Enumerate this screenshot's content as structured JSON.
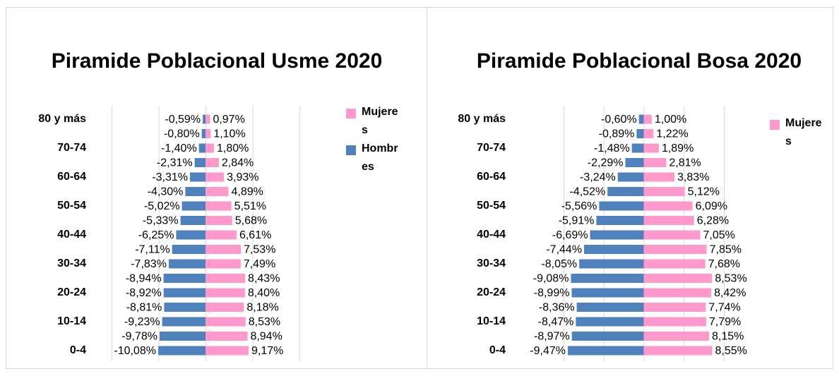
{
  "chart_data": [
    {
      "type": "bar",
      "orientation": "horizontal",
      "title": "Piramide Poblacional Usme 2020",
      "categories": [
        "80 y más",
        null,
        "70-74",
        null,
        "60-64",
        null,
        "50-54",
        null,
        "40-44",
        null,
        "30-34",
        null,
        "20-24",
        null,
        "10-14",
        null,
        "0-4"
      ],
      "series": [
        {
          "name": "Mujeres",
          "color": "#ff99cc",
          "values": [
            0.97,
            1.1,
            1.8,
            2.84,
            3.93,
            4.89,
            5.51,
            5.68,
            6.61,
            7.53,
            7.49,
            8.43,
            8.4,
            8.18,
            8.53,
            8.94,
            9.17
          ],
          "value_labels": [
            "0,97%",
            "1,10%",
            "1,80%",
            "2,84%",
            "3,93%",
            "4,89%",
            "5,51%",
            "5,68%",
            "6,61%",
            "7,53%",
            "7,49%",
            "8,43%",
            "8,40%",
            "8,18%",
            "8,53%",
            "8,94%",
            "9,17%"
          ]
        },
        {
          "name": "Hombres",
          "color": "#4f81bd",
          "values": [
            -0.59,
            -0.8,
            -1.4,
            -2.31,
            -3.31,
            -4.3,
            -5.02,
            -5.33,
            -6.25,
            -7.11,
            -7.83,
            -8.94,
            -8.92,
            -8.81,
            -9.23,
            -9.78,
            -10.08
          ],
          "value_labels": [
            "-0,59%",
            "-0,80%",
            "-1,40%",
            "-2,31%",
            "-3,31%",
            "-4,30%",
            "-5,02%",
            "-5,33%",
            "-6,25%",
            "-7,11%",
            "-7,83%",
            "-8,94%",
            "-8,92%",
            "-8,81%",
            "-9,23%",
            "-9,78%",
            "-10,08%"
          ]
        }
      ],
      "xlim": [
        -20,
        20
      ],
      "xticks": [
        -20,
        -10,
        0,
        10,
        20
      ],
      "tick_labels_visible": false,
      "grid": true,
      "legend": "right"
    },
    {
      "type": "bar",
      "orientation": "horizontal",
      "title": "Piramide Poblacional Bosa 2020",
      "categories": [
        "80 y más",
        null,
        "70-74",
        null,
        "60-64",
        null,
        "50-54",
        null,
        "40-44",
        null,
        "30-34",
        null,
        "20-24",
        null,
        "10-14",
        null,
        "0-4"
      ],
      "series": [
        {
          "name": "Mujeres",
          "color": "#ff99cc",
          "values": [
            1.0,
            1.22,
            1.89,
            2.81,
            3.83,
            5.12,
            6.09,
            6.28,
            7.05,
            7.85,
            7.68,
            8.53,
            8.42,
            7.74,
            7.79,
            8.15,
            8.55
          ],
          "value_labels": [
            "1,00%",
            "1,22%",
            "1,89%",
            "2,81%",
            "3,83%",
            "5,12%",
            "6,09%",
            "6,28%",
            "7,05%",
            "7,85%",
            "7,68%",
            "8,53%",
            "8,42%",
            "7,74%",
            "7,79%",
            "8,15%",
            "8,55%"
          ]
        },
        {
          "color": "#4f81bd",
          "values": [
            -0.6,
            -0.89,
            -1.48,
            -2.29,
            -3.24,
            -4.52,
            -5.56,
            -5.91,
            -6.69,
            -7.44,
            -8.05,
            -9.08,
            -8.99,
            -8.36,
            -8.47,
            -8.97,
            -9.47
          ],
          "value_labels": [
            "-0,60%",
            "-0,89%",
            "-1,48%",
            "-2,29%",
            "-3,24%",
            "-4,52%",
            "-5,56%",
            "-5,91%",
            "-6,69%",
            "-7,44%",
            "-8,05%",
            "-9,08%",
            "-8,99%",
            "-8,36%",
            "-8,47%",
            "-8,97%",
            "-9,47%"
          ]
        }
      ],
      "xlim": [
        -10,
        10
      ],
      "xticks": [
        -10,
        -5,
        0,
        5,
        10
      ],
      "tick_labels_visible": false,
      "grid": true,
      "legend": "right"
    }
  ]
}
